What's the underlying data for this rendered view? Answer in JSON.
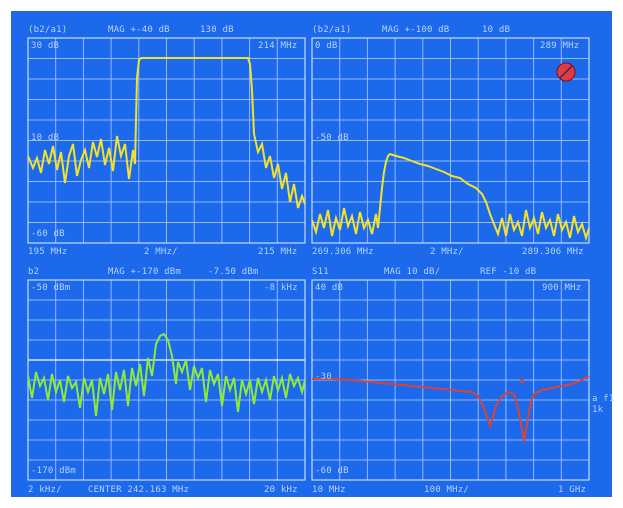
{
  "colors": {
    "background": "#1c69ec",
    "grid": "#a9c8ff",
    "trace_yellow": "#f2e22a",
    "trace_green": "#8eea3a",
    "trace_red": "#d9443a",
    "text": "#b8d2ff"
  },
  "panels": [
    {
      "id": "top-left",
      "header": [
        "(b2/a1)",
        "MAG +-40 dB",
        "130 dB"
      ],
      "scale_top_left": "30 dB",
      "scale_top_right": "214 MHz",
      "ref_label": "10 dB",
      "scale_bottom_left": "-60 dB",
      "footer": [
        "195 MHz",
        "2 MHz/",
        "215 MHz"
      ],
      "trace_color": "yellow",
      "trace_icon": null
    },
    {
      "id": "top-right",
      "header": [
        "(b2/a1)",
        "MAG +-100 dB",
        "10 dB"
      ],
      "scale_top_left": "0 dB",
      "scale_top_right": "289 MHz",
      "ref_label": "-50 dB",
      "scale_bottom_left": "",
      "footer": [
        "269.306 MHz",
        "2 MHz/",
        "289.306 MHz"
      ],
      "trace_color": "yellow",
      "trace_icon": "disabled-marker-icon"
    },
    {
      "id": "bottom-left",
      "header": [
        "b2",
        "MAG +-170 dBm",
        "-7.50 dBm"
      ],
      "scale_top_left": "-50 dBm",
      "scale_top_right": "-8 kHz",
      "ref_label": "",
      "scale_bottom_left": "-170 dBm",
      "footer": [
        "2 kHz/",
        "CENTER 242.163 MHz",
        "20 kHz"
      ],
      "trace_color": "green",
      "trace_icon": null
    },
    {
      "id": "bottom-right",
      "header": [
        "S11",
        "MAG 10 dB/",
        "REF -10 dB"
      ],
      "scale_top_left": "40 dB",
      "scale_top_right": "900 MHz",
      "ref_label": "-30",
      "scale_bottom_left": "-60 dB",
      "footer": [
        "10 MHz",
        "100 MHz/",
        "1 GHz"
      ],
      "trace_color": "red",
      "trace_icon": null,
      "side_labels": [
        "a f1",
        "1k"
      ]
    }
  ]
}
